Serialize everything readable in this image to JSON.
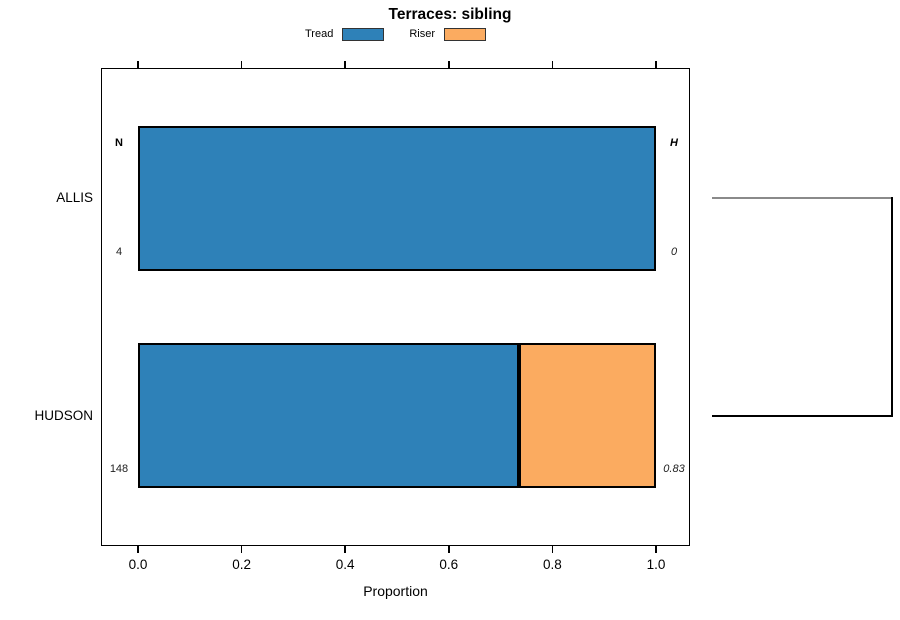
{
  "figure": {
    "title": "Terraces: sibling",
    "x_axis_label": "Proportion"
  },
  "legend": {
    "items": [
      {
        "label": "Tread",
        "color": "#2E81B8"
      },
      {
        "label": "Riser",
        "color": "#FBAB60"
      }
    ]
  },
  "axes": {
    "x_ticks": [
      {
        "label": "0.0",
        "value": 0
      },
      {
        "label": "0.2",
        "value": 0.2
      },
      {
        "label": "0.4",
        "value": 0.4
      },
      {
        "label": "0.6",
        "value": 0.6
      },
      {
        "label": "0.8",
        "value": 0.8
      },
      {
        "label": "1.0",
        "value": 1.0
      }
    ]
  },
  "stat_columns": {
    "n_header": "N",
    "h_header": "H"
  },
  "chart_data": {
    "type": "bar",
    "orientation": "horizontal",
    "stacked": true,
    "title": "Terraces: sibling",
    "xlabel": "Proportion",
    "xlim": [
      0,
      1
    ],
    "grid": false,
    "legend_position": "top-center",
    "categories": [
      "ALLIS",
      "HUDSON"
    ],
    "series": [
      {
        "name": "Tread",
        "color": "#2E81B8",
        "values": [
          1.0,
          0.736
        ]
      },
      {
        "name": "Riser",
        "color": "#FBAB60",
        "values": [
          0.0,
          0.264
        ]
      }
    ],
    "row_annotations": [
      {
        "category": "ALLIS",
        "N": "4",
        "H": "0"
      },
      {
        "category": "HUDSON",
        "N": "148",
        "H": "0.83"
      }
    ],
    "right_dendrogram": {
      "joins": [
        "ALLIS",
        "HUDSON"
      ],
      "top_branch_color": "#8a8a8a",
      "bottom_branch_color": "#000000",
      "join_color": "#000000"
    }
  },
  "colors": {
    "bar_border": "#000000",
    "plot_border": "#000000",
    "background": "#ffffff"
  }
}
